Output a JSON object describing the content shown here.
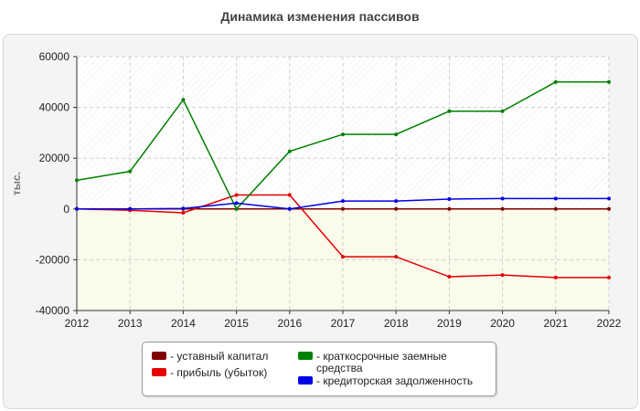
{
  "chart_data": {
    "type": "line",
    "title": "Динамика изменения пассивов",
    "ylabel": "тыс.",
    "xlabel": "",
    "x": [
      2012,
      2013,
      2014,
      2015,
      2016,
      2017,
      2018,
      2019,
      2020,
      2021,
      2022
    ],
    "ylim": [
      -40000,
      60000
    ],
    "yticks": [
      -40000,
      -20000,
      0,
      20000,
      40000,
      60000
    ],
    "grid": true,
    "legend_position": "bottom",
    "series": [
      {
        "name": "- уставный капитал",
        "color": "#800000",
        "values": [
          0,
          0,
          0,
          0,
          0,
          0,
          0,
          0,
          0,
          0,
          0
        ]
      },
      {
        "name": "- прибыль (убыток)",
        "color": "#e60000",
        "values": [
          0,
          -500,
          -1500,
          5500,
          5500,
          -18800,
          -18800,
          -26700,
          -26000,
          -27000,
          -27000
        ]
      },
      {
        "name": "- краткосрочные заемные средства",
        "color": "#008000",
        "values": [
          11300,
          14800,
          43000,
          0,
          22700,
          29400,
          29400,
          38500,
          38500,
          50000,
          50000
        ]
      },
      {
        "name": "- кредиторская задолженность",
        "color": "#0000e6",
        "values": [
          0,
          0,
          200,
          2300,
          0,
          3100,
          3100,
          3900,
          4100,
          4100,
          4100
        ]
      }
    ]
  }
}
